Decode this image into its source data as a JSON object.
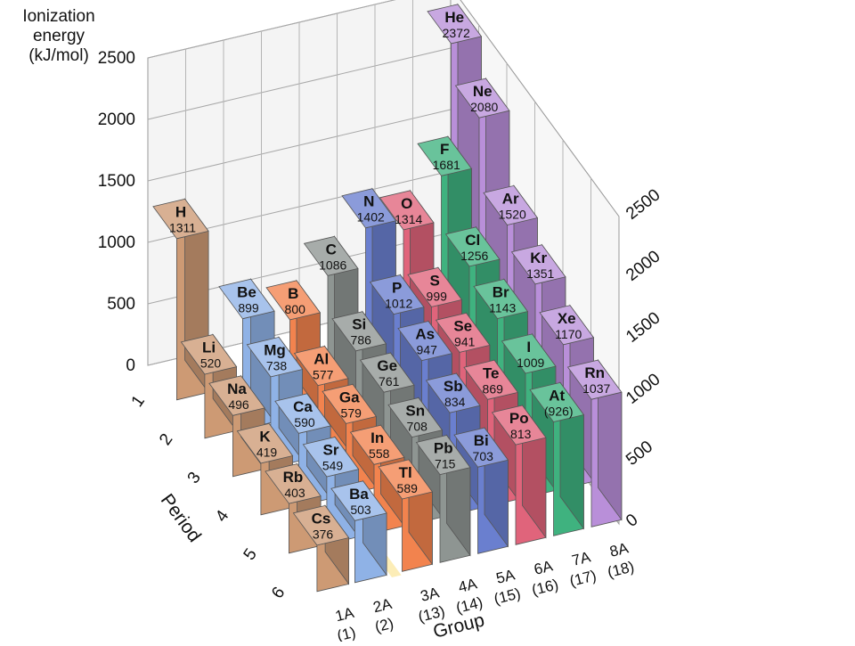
{
  "chart_data": {
    "type": "bar",
    "projection": "3d",
    "title": "",
    "ylabel": "Ionization energy (kJ/mol)",
    "row_axis_label": "Period",
    "col_axis_label": "Group",
    "ylim": [
      0,
      2500
    ],
    "yticks": [
      0,
      500,
      1000,
      1500,
      2000,
      2500
    ],
    "rows": [
      "1",
      "2",
      "3",
      "4",
      "5",
      "6"
    ],
    "columns": [
      {
        "name": "1A",
        "number": "(1)",
        "color": "#cd9a74"
      },
      {
        "name": "2A",
        "number": "(2)",
        "color": "#8fb2e6"
      },
      {
        "name": "3A",
        "number": "(13)",
        "color": "#f2834e"
      },
      {
        "name": "4A",
        "number": "(14)",
        "color": "#8e9592"
      },
      {
        "name": "5A",
        "number": "(15)",
        "color": "#6a7fcf"
      },
      {
        "name": "6A",
        "number": "(16)",
        "color": "#e0647b"
      },
      {
        "name": "7A",
        "number": "(17)",
        "color": "#3fb27f"
      },
      {
        "name": "8A",
        "number": "(18)",
        "color": "#b98fd9"
      }
    ],
    "floor_color": "#fcedb7",
    "elements": [
      {
        "symbol": "H",
        "value": 1311,
        "label": "1311",
        "row": 1,
        "col": 0
      },
      {
        "symbol": "He",
        "value": 2372,
        "label": "2372",
        "row": 1,
        "col": 7
      },
      {
        "symbol": "Li",
        "value": 520,
        "label": "520",
        "row": 2,
        "col": 0
      },
      {
        "symbol": "Be",
        "value": 899,
        "label": "899",
        "row": 2,
        "col": 1
      },
      {
        "symbol": "B",
        "value": 800,
        "label": "800",
        "row": 2,
        "col": 2
      },
      {
        "symbol": "C",
        "value": 1086,
        "label": "1086",
        "row": 2,
        "col": 3
      },
      {
        "symbol": "N",
        "value": 1402,
        "label": "1402",
        "row": 2,
        "col": 4
      },
      {
        "symbol": "O",
        "value": 1314,
        "label": "1314",
        "row": 2,
        "col": 5
      },
      {
        "symbol": "F",
        "value": 1681,
        "label": "1681",
        "row": 2,
        "col": 6
      },
      {
        "symbol": "Ne",
        "value": 2080,
        "label": "2080",
        "row": 2,
        "col": 7
      },
      {
        "symbol": "Na",
        "value": 496,
        "label": "496",
        "row": 3,
        "col": 0
      },
      {
        "symbol": "Mg",
        "value": 738,
        "label": "738",
        "row": 3,
        "col": 1
      },
      {
        "symbol": "Al",
        "value": 577,
        "label": "577",
        "row": 3,
        "col": 2
      },
      {
        "symbol": "Si",
        "value": 786,
        "label": "786",
        "row": 3,
        "col": 3
      },
      {
        "symbol": "P",
        "value": 1012,
        "label": "1012",
        "row": 3,
        "col": 4
      },
      {
        "symbol": "S",
        "value": 999,
        "label": "999",
        "row": 3,
        "col": 5
      },
      {
        "symbol": "Cl",
        "value": 1256,
        "label": "1256",
        "row": 3,
        "col": 6
      },
      {
        "symbol": "Ar",
        "value": 1520,
        "label": "1520",
        "row": 3,
        "col": 7
      },
      {
        "symbol": "K",
        "value": 419,
        "label": "419",
        "row": 4,
        "col": 0
      },
      {
        "symbol": "Ca",
        "value": 590,
        "label": "590",
        "row": 4,
        "col": 1
      },
      {
        "symbol": "Ga",
        "value": 579,
        "label": "579",
        "row": 4,
        "col": 2
      },
      {
        "symbol": "Ge",
        "value": 761,
        "label": "761",
        "row": 4,
        "col": 3
      },
      {
        "symbol": "As",
        "value": 947,
        "label": "947",
        "row": 4,
        "col": 4
      },
      {
        "symbol": "Se",
        "value": 941,
        "label": "941",
        "row": 4,
        "col": 5
      },
      {
        "symbol": "Br",
        "value": 1143,
        "label": "1143",
        "row": 4,
        "col": 6
      },
      {
        "symbol": "Kr",
        "value": 1351,
        "label": "1351",
        "row": 4,
        "col": 7
      },
      {
        "symbol": "Rb",
        "value": 403,
        "label": "403",
        "row": 5,
        "col": 0
      },
      {
        "symbol": "Sr",
        "value": 549,
        "label": "549",
        "row": 5,
        "col": 1
      },
      {
        "symbol": "In",
        "value": 558,
        "label": "558",
        "row": 5,
        "col": 2
      },
      {
        "symbol": "Sn",
        "value": 708,
        "label": "708",
        "row": 5,
        "col": 3
      },
      {
        "symbol": "Sb",
        "value": 834,
        "label": "834",
        "row": 5,
        "col": 4
      },
      {
        "symbol": "Te",
        "value": 869,
        "label": "869",
        "row": 5,
        "col": 5
      },
      {
        "symbol": "I",
        "value": 1009,
        "label": "1009",
        "row": 5,
        "col": 6
      },
      {
        "symbol": "Xe",
        "value": 1170,
        "label": "1170",
        "row": 5,
        "col": 7
      },
      {
        "symbol": "Cs",
        "value": 376,
        "label": "376",
        "row": 6,
        "col": 0
      },
      {
        "symbol": "Ba",
        "value": 503,
        "label": "503",
        "row": 6,
        "col": 1
      },
      {
        "symbol": "Tl",
        "value": 589,
        "label": "589",
        "row": 6,
        "col": 2
      },
      {
        "symbol": "Pb",
        "value": 715,
        "label": "715",
        "row": 6,
        "col": 3
      },
      {
        "symbol": "Bi",
        "value": 703,
        "label": "703",
        "row": 6,
        "col": 4
      },
      {
        "symbol": "Po",
        "value": 813,
        "label": "813",
        "row": 6,
        "col": 5
      },
      {
        "symbol": "At",
        "value": 926,
        "label": "(926)",
        "row": 6,
        "col": 6
      },
      {
        "symbol": "Rn",
        "value": 1037,
        "label": "1037",
        "row": 6,
        "col": 7
      }
    ]
  }
}
